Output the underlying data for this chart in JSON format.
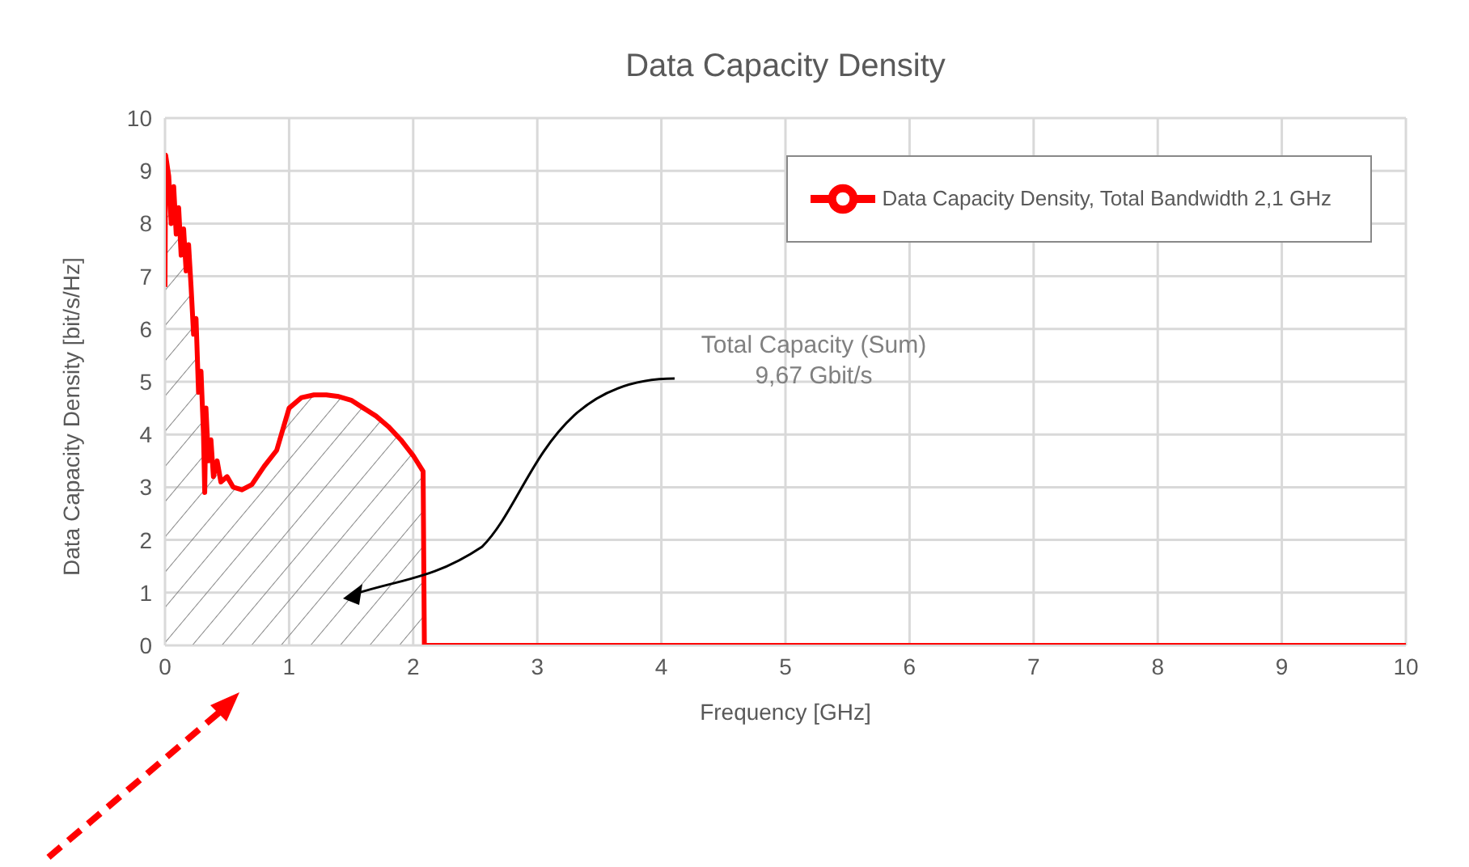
{
  "chart_data": {
    "type": "area",
    "title": "Data Capacity Density",
    "xlabel": "Frequency [GHz]",
    "ylabel": "Data Capacity Density [bit/s/Hz]",
    "series": [
      {
        "name": "Data Capacity Density, Total Bandwidth 2,1 GHz",
        "color": "#ff0000",
        "x": [
          0,
          0.005,
          0.03,
          0.05,
          0.07,
          0.09,
          0.11,
          0.13,
          0.15,
          0.17,
          0.19,
          0.21,
          0.23,
          0.25,
          0.27,
          0.29,
          0.31,
          0.32,
          0.33,
          0.35,
          0.37,
          0.39,
          0.42,
          0.45,
          0.5,
          0.55,
          0.62,
          0.7,
          0.8,
          0.9,
          0.95,
          1.0,
          1.1,
          1.2,
          1.3,
          1.4,
          1.5,
          1.6,
          1.7,
          1.8,
          1.9,
          2.0,
          2.08,
          2.09,
          10
        ],
        "values": [
          6.8,
          9.3,
          8.9,
          8.0,
          8.7,
          7.8,
          8.3,
          7.4,
          7.9,
          7.1,
          7.6,
          6.8,
          5.9,
          6.2,
          4.8,
          5.2,
          4.0,
          2.9,
          4.5,
          3.5,
          3.9,
          3.2,
          3.5,
          3.1,
          3.2,
          3.0,
          2.95,
          3.05,
          3.4,
          3.7,
          4.1,
          4.5,
          4.7,
          4.75,
          4.75,
          4.72,
          4.65,
          4.5,
          4.35,
          4.15,
          3.9,
          3.6,
          3.3,
          0,
          0
        ]
      }
    ],
    "xlim": [
      0,
      10
    ],
    "xticks": [
      0,
      1,
      2,
      3,
      4,
      5,
      6,
      7,
      8,
      9,
      10
    ],
    "ylim": [
      0,
      10
    ],
    "yticks": [
      0,
      1,
      2,
      3,
      4,
      5,
      6,
      7,
      8,
      9,
      10
    ],
    "grid": true,
    "legend": "top right",
    "annotations": [
      "Total Capacity (Sum)",
      "9,67 Gbit/s"
    ]
  }
}
